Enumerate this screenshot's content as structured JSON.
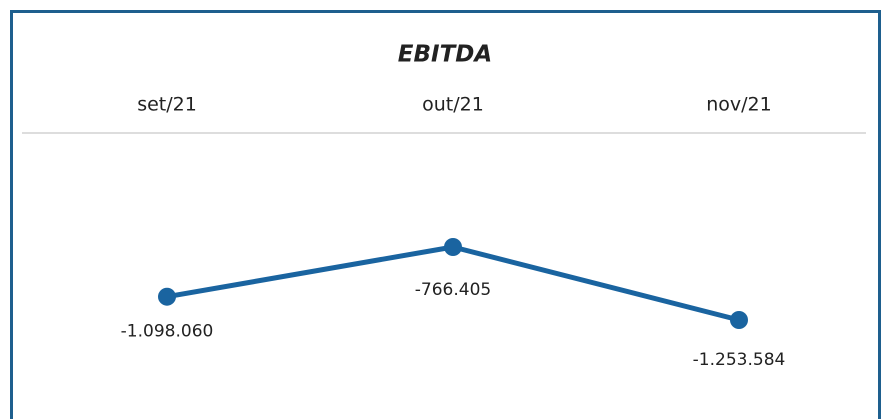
{
  "chart_data": {
    "type": "line",
    "title": "EBITDA",
    "categories": [
      "set/21",
      "out/21",
      "nov/21"
    ],
    "series": [
      {
        "name": null,
        "color": "#1a64a0",
        "values": [
          -1098060,
          -766405,
          -1253584
        ],
        "value_labels": [
          "-1.098.060",
          "-766.405",
          "-1.253.584"
        ]
      }
    ]
  }
}
